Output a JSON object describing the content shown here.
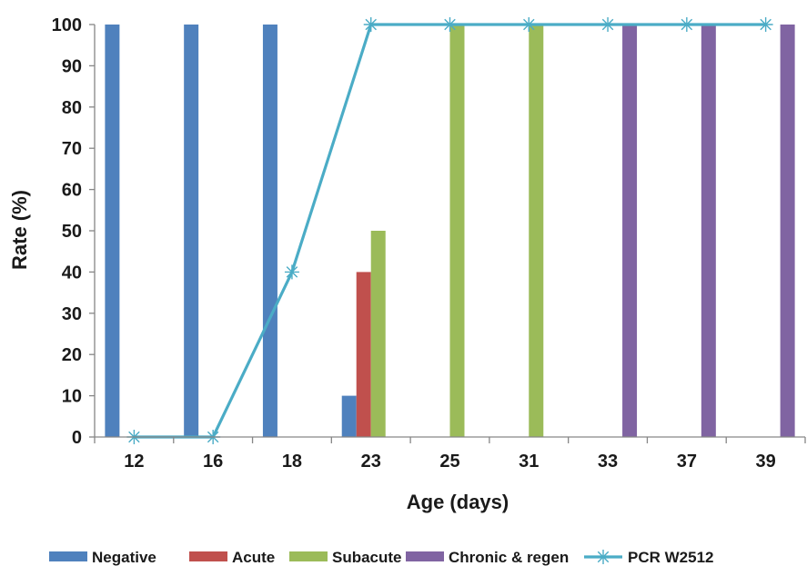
{
  "chart_data": {
    "type": "bar",
    "categories": [
      "12",
      "16",
      "18",
      "23",
      "25",
      "31",
      "33",
      "37",
      "39"
    ],
    "series": [
      {
        "name": "Negative",
        "color": "#4f81bd",
        "values": [
          100,
          100,
          100,
          10,
          0,
          0,
          0,
          0,
          0
        ]
      },
      {
        "name": "Acute",
        "color": "#c0504d",
        "values": [
          0,
          0,
          0,
          40,
          0,
          0,
          0,
          0,
          0
        ]
      },
      {
        "name": "Subacute",
        "color": "#9bbb59",
        "values": [
          0,
          0,
          0,
          50,
          100,
          100,
          0,
          0,
          0
        ]
      },
      {
        "name": "Chronic & regen",
        "color": "#8064a2",
        "values": [
          0,
          0,
          0,
          0,
          0,
          0,
          100,
          100,
          100
        ]
      }
    ],
    "line_series": {
      "name": "PCR W2512",
      "color": "#4bacc6",
      "marker": "asterisk",
      "values": [
        0,
        0,
        40,
        100,
        100,
        100,
        100,
        100,
        100
      ]
    },
    "xlabel": "Age (days)",
    "ylabel": "Rate (%)",
    "ylim": [
      0,
      100
    ],
    "yticks": [
      "0",
      "10",
      "20",
      "30",
      "40",
      "50",
      "60",
      "70",
      "80",
      "90",
      "100"
    ],
    "grid": false,
    "legend": "bottom"
  }
}
